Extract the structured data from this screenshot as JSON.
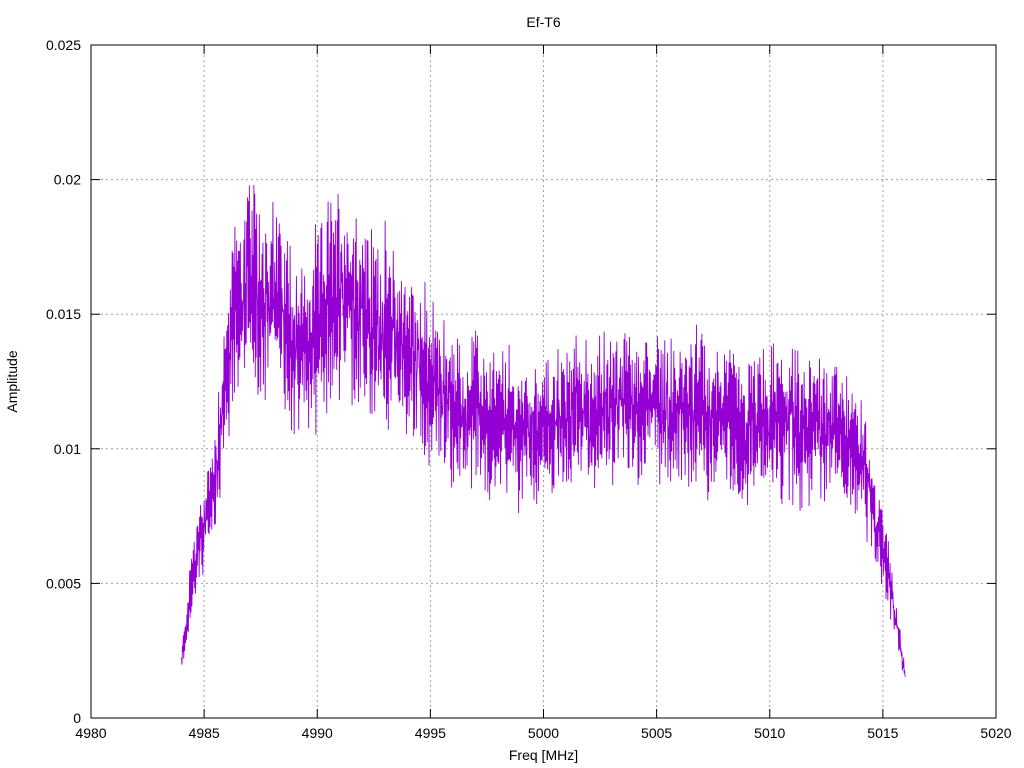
{
  "chart_data": {
    "type": "line",
    "title": "Ef-T6",
    "xlabel": "Freq [MHz]",
    "ylabel": "Amplitude",
    "xlim": [
      4980,
      5020
    ],
    "ylim": [
      0,
      0.025
    ],
    "x_ticks": [
      "4980",
      "4985",
      "4990",
      "4995",
      "5000",
      "5005",
      "5010",
      "5015",
      "5020"
    ],
    "y_ticks": [
      "0",
      "0.005",
      "0.01",
      "0.015",
      "0.02",
      "0.025"
    ],
    "grid": true,
    "series_color": "#9400d3",
    "series": [
      {
        "x": [
          4984,
          4984.5,
          4985,
          4985.5,
          4986,
          4986.5,
          4987,
          4987.5,
          4988,
          4988.5,
          4989,
          4989.5,
          4990,
          4990.5,
          4991,
          4991.5,
          4992,
          4992.5,
          4993,
          4993.5,
          4994,
          4994.5,
          4995,
          4995.5,
          4996,
          4996.5,
          4997,
          4997.5,
          4998,
          4998.5,
          4999,
          4999.5,
          5000,
          5000.5,
          5001,
          5001.5,
          5002,
          5002.5,
          5003,
          5003.5,
          5004,
          5004.5,
          5005,
          5005.5,
          5006,
          5006.5,
          5007,
          5007.5,
          5008,
          5008.5,
          5009,
          5009.5,
          5010,
          5010.5,
          5011,
          5011.5,
          5012,
          5012.5,
          5013,
          5013.5,
          5014,
          5014.5,
          5015,
          5015.5,
          5016
        ],
        "y": [
          0.002,
          0.0055,
          0.007,
          0.009,
          0.013,
          0.0155,
          0.016,
          0.0155,
          0.0155,
          0.015,
          0.014,
          0.0135,
          0.0145,
          0.0155,
          0.016,
          0.0155,
          0.015,
          0.0145,
          0.0145,
          0.014,
          0.0135,
          0.013,
          0.0125,
          0.012,
          0.0115,
          0.011,
          0.0115,
          0.011,
          0.011,
          0.011,
          0.0105,
          0.011,
          0.0105,
          0.011,
          0.011,
          0.0115,
          0.011,
          0.0115,
          0.0115,
          0.0115,
          0.0115,
          0.0115,
          0.0115,
          0.0115,
          0.011,
          0.0115,
          0.0115,
          0.011,
          0.0115,
          0.011,
          0.0105,
          0.011,
          0.011,
          0.011,
          0.011,
          0.0105,
          0.011,
          0.011,
          0.0105,
          0.0105,
          0.0095,
          0.008,
          0.0065,
          0.004,
          0.0015
        ]
      }
    ]
  }
}
